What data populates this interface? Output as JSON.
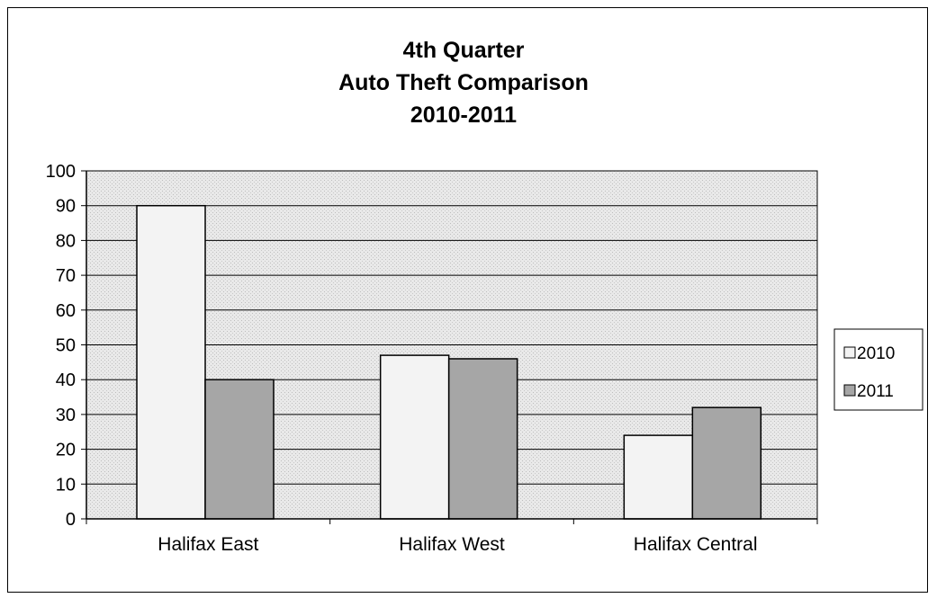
{
  "chart_data": {
    "type": "bar",
    "title_lines": [
      "4th Quarter",
      "Auto Theft Comparison",
      "2010-2011"
    ],
    "categories": [
      "Halifax East",
      "Halifax West",
      "Halifax Central"
    ],
    "series": [
      {
        "name": "2010",
        "values": [
          90,
          47,
          24
        ]
      },
      {
        "name": "2011",
        "values": [
          40,
          46,
          32
        ]
      }
    ],
    "ylim": [
      0,
      100
    ],
    "yticks": [
      0,
      10,
      20,
      30,
      40,
      50,
      60,
      70,
      80,
      90,
      100
    ],
    "grid": true,
    "legend_position": "right",
    "colors": {
      "plot_background": "#e6e6e6",
      "series_2010": "#f3f3f3",
      "series_2011": "#a6a6a6",
      "gridline": "#000000"
    }
  }
}
